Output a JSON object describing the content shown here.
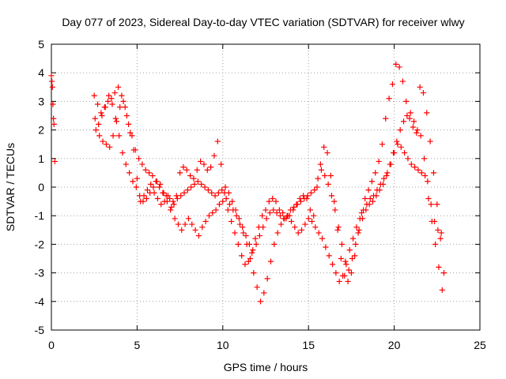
{
  "chart_data": {
    "type": "scatter",
    "title": "Day 077 of 2023, Sidereal Day-to-day VTEC variation (SDTVAR) for receiver wlwy",
    "xlabel": "GPS time / hours",
    "ylabel": "SDTVAR / TECUs",
    "xlim": [
      0,
      25
    ],
    "ylim": [
      -5,
      5
    ],
    "xticks": [
      0,
      5,
      10,
      15,
      20,
      25
    ],
    "yticks": [
      -5,
      -4,
      -3,
      -2,
      -1,
      0,
      1,
      2,
      3,
      4,
      5
    ],
    "xtick_labels": [
      "0",
      "5",
      "10",
      "15",
      "20",
      "25"
    ],
    "ytick_labels": [
      "-5",
      "-4",
      "-3",
      "-2",
      "-1",
      "0",
      "1",
      "2",
      "3",
      "4",
      "5"
    ],
    "grid": true,
    "marker": "+",
    "color": "#ff0000",
    "series": [
      {
        "name": "SDTVAR",
        "x": [
          0.0,
          0.03,
          0.06,
          0.09,
          0.12,
          0.15,
          0.2,
          2.5,
          2.7,
          2.9,
          3.1,
          3.3,
          3.5,
          3.7,
          3.9,
          4.1,
          4.3,
          4.5,
          4.7,
          4.9,
          5.1,
          5.3,
          5.5,
          5.7,
          5.9,
          6.1,
          6.3,
          6.5,
          6.7,
          6.9,
          7.1,
          7.3,
          7.5,
          7.7,
          7.9,
          8.1,
          8.3,
          8.5,
          8.7,
          8.9,
          9.1,
          9.3,
          9.5,
          9.7,
          9.9,
          10.1,
          10.3,
          10.5,
          10.7,
          10.9,
          11.1,
          11.3,
          11.5,
          11.7,
          11.9,
          12.1,
          12.3,
          12.5,
          12.7,
          12.9,
          13.1,
          13.3,
          13.5,
          13.7,
          13.9,
          14.1,
          14.3,
          14.5,
          14.7,
          14.9,
          15.1,
          15.3,
          15.5,
          15.7,
          15.9,
          16.1,
          16.3,
          16.5,
          16.7,
          16.9,
          17.1,
          17.3,
          17.5,
          17.7,
          17.9,
          18.1,
          18.3,
          18.5,
          18.7,
          18.9,
          19.1,
          19.3,
          19.5,
          19.7,
          19.9,
          20.1,
          20.3,
          20.5,
          20.7,
          20.9,
          21.1,
          21.3,
          21.5,
          21.7,
          21.9,
          22.1,
          22.3,
          22.5,
          22.7,
          22.9,
          2.6,
          2.8,
          3.0,
          3.2,
          3.4,
          3.6,
          3.8,
          4.0,
          4.2,
          4.4,
          4.6,
          4.8,
          5.0,
          5.2,
          5.4,
          5.6,
          5.8,
          6.0,
          6.2,
          6.4,
          6.6,
          6.8,
          7.0,
          7.2,
          7.4,
          7.6,
          7.8,
          8.0,
          8.2,
          8.4,
          8.6,
          8.8,
          9.0,
          9.2,
          9.4,
          9.6,
          9.8,
          10.0,
          10.2,
          10.4,
          10.6,
          10.8,
          11.0,
          11.2,
          11.4,
          11.6,
          11.8,
          12.0,
          12.2,
          12.4,
          12.6,
          12.8,
          13.0,
          13.2,
          13.4,
          13.6,
          13.8,
          14.0,
          14.2,
          14.4,
          14.6,
          14.8,
          15.0,
          15.2,
          15.4,
          15.6,
          15.8,
          16.0,
          16.2,
          16.4,
          16.6,
          16.8,
          17.0,
          17.2,
          17.4,
          17.6,
          17.8,
          18.0,
          18.2,
          18.4,
          18.6,
          18.8,
          19.0,
          19.2,
          19.4,
          19.6,
          19.8,
          20.0,
          20.2,
          20.4,
          20.6,
          20.8,
          21.0,
          21.2,
          21.4,
          21.6,
          21.8,
          22.0,
          22.2,
          22.4,
          22.6,
          22.8,
          2.55,
          2.75,
          2.95,
          3.15,
          3.35,
          3.55,
          3.75,
          3.95,
          4.15,
          4.35,
          4.55,
          4.75,
          4.95,
          5.15,
          5.35,
          5.55,
          5.75,
          5.95,
          6.15,
          6.35,
          6.55,
          6.75,
          6.95,
          7.15,
          7.35,
          7.55,
          7.75,
          7.95,
          8.15,
          8.35,
          8.55,
          8.75,
          8.95,
          9.15,
          9.35,
          9.55,
          9.75,
          9.95,
          10.15,
          10.35,
          10.55,
          10.75,
          10.95,
          11.15,
          11.35,
          11.55,
          11.75,
          11.95,
          12.15,
          12.35,
          12.55,
          12.75,
          12.95,
          13.15,
          13.35,
          13.55,
          13.75,
          13.95,
          14.15,
          14.35,
          14.55,
          14.75,
          14.95,
          15.15,
          15.35,
          15.55,
          15.75,
          15.95,
          16.15,
          16.35,
          16.55,
          16.75,
          16.95,
          17.15,
          17.35,
          17.55,
          17.75,
          17.95,
          18.15,
          18.35,
          18.55,
          18.75,
          18.95,
          19.15,
          19.35,
          19.55,
          19.75,
          19.95,
          20.15,
          20.35,
          20.55,
          20.75,
          20.95,
          21.15,
          21.35,
          21.55,
          21.75,
          21.95,
          22.15,
          22.35,
          22.55,
          22.75
        ],
        "y": [
          3.9,
          3.7,
          3.5,
          2.9,
          2.4,
          2.2,
          0.9,
          3.2,
          2.9,
          2.6,
          2.8,
          3.0,
          3.1,
          3.3,
          3.5,
          3.2,
          2.8,
          2.2,
          1.8,
          1.3,
          1.0,
          0.8,
          0.6,
          0.5,
          0.4,
          0.2,
          0.0,
          -0.2,
          -0.3,
          -0.4,
          -0.5,
          -0.3,
          0.5,
          0.7,
          0.6,
          0.4,
          0.3,
          0.6,
          0.9,
          0.8,
          0.6,
          0.7,
          1.1,
          1.6,
          0.8,
          -0.2,
          -0.8,
          -1.2,
          -1.6,
          -2.0,
          -2.4,
          -2.7,
          -2.6,
          -2.3,
          -1.8,
          -1.4,
          -1.0,
          -0.8,
          -0.5,
          -0.4,
          -0.5,
          -0.8,
          -0.9,
          -1.1,
          -1.0,
          -0.8,
          -0.6,
          -0.4,
          -0.3,
          -0.4,
          -0.8,
          -1.0,
          0.0,
          0.8,
          1.4,
          1.2,
          0.4,
          -0.5,
          -1.5,
          -2.5,
          -3.1,
          -3.3,
          -3.0,
          -2.4,
          -1.6,
          -0.9,
          -0.4,
          -0.1,
          0.2,
          0.5,
          0.9,
          1.5,
          2.4,
          3.1,
          3.6,
          4.3,
          4.2,
          3.7,
          3.0,
          2.4,
          2.1,
          1.9,
          3.5,
          3.3,
          2.6,
          1.6,
          0.5,
          -0.6,
          -1.8,
          -3.0,
          2.0,
          1.8,
          1.6,
          1.5,
          1.4,
          1.8,
          2.3,
          2.8,
          3.0,
          2.5,
          1.9,
          1.3,
          0.3,
          -0.5,
          -0.3,
          -0.1,
          0.1,
          -0.2,
          -0.4,
          -0.6,
          -0.5,
          -0.3,
          -0.7,
          -1.1,
          -1.3,
          -1.5,
          -1.3,
          -1.1,
          -1.3,
          -1.5,
          -1.7,
          -1.4,
          -1.2,
          -1.0,
          -0.9,
          -0.8,
          -0.6,
          -0.5,
          -0.4,
          -0.6,
          -0.8,
          -1.0,
          -1.3,
          -1.6,
          -2.0,
          -2.5,
          -3.0,
          -3.5,
          -4.0,
          -3.7,
          -3.2,
          -2.6,
          -2.0,
          -1.6,
          -1.3,
          -1.1,
          -1.0,
          -1.2,
          -1.4,
          -1.6,
          -1.5,
          -1.3,
          -1.1,
          -1.2,
          -1.4,
          -1.6,
          -1.8,
          -2.1,
          -2.4,
          -2.7,
          -3.0,
          -3.3,
          -3.1,
          -2.7,
          -2.2,
          -1.8,
          -1.4,
          -1.1,
          -0.8,
          -0.6,
          -0.4,
          -0.3,
          -0.1,
          0.1,
          0.3,
          0.5,
          0.8,
          1.2,
          1.5,
          1.4,
          1.2,
          1.0,
          0.8,
          0.7,
          0.6,
          0.5,
          0.4,
          -0.4,
          -1.2,
          -2.0,
          -2.8,
          -3.6,
          2.4,
          2.2,
          2.5,
          2.8,
          3.2,
          2.9,
          2.4,
          1.8,
          1.2,
          0.8,
          0.5,
          0.2,
          0.0,
          -0.3,
          -0.5,
          -0.4,
          -0.2,
          0.0,
          0.2,
          0.1,
          -0.2,
          -0.5,
          -0.8,
          -0.6,
          -0.4,
          -0.3,
          -0.2,
          -0.1,
          0.0,
          0.1,
          0.2,
          0.1,
          0.0,
          -0.1,
          -0.2,
          -0.3,
          -0.2,
          -0.1,
          0.0,
          -0.2,
          -0.5,
          -0.8,
          -1.1,
          -1.4,
          -1.7,
          -2.0,
          -2.2,
          -2.0,
          -1.7,
          -1.4,
          -1.1,
          -0.9,
          -0.8,
          -0.9,
          -1.0,
          -1.1,
          -1.0,
          -0.8,
          -0.7,
          -0.6,
          -0.5,
          -0.4,
          -0.3,
          -0.2,
          -0.1,
          0.3,
          0.6,
          0.4,
          0.1,
          -0.3,
          -0.8,
          -1.4,
          -2.0,
          -2.6,
          -2.9,
          -2.5,
          -2.0,
          -1.5,
          -1.1,
          -0.8,
          -0.6,
          -0.5,
          -0.3,
          -0.1,
          0.1,
          0.4,
          0.8,
          1.2,
          1.6,
          2.0,
          2.3,
          2.5,
          2.6,
          2.3,
          2.0,
          1.8,
          1.0,
          0.2,
          -0.6,
          -1.2,
          -1.5,
          -1.6
        ]
      }
    ]
  }
}
